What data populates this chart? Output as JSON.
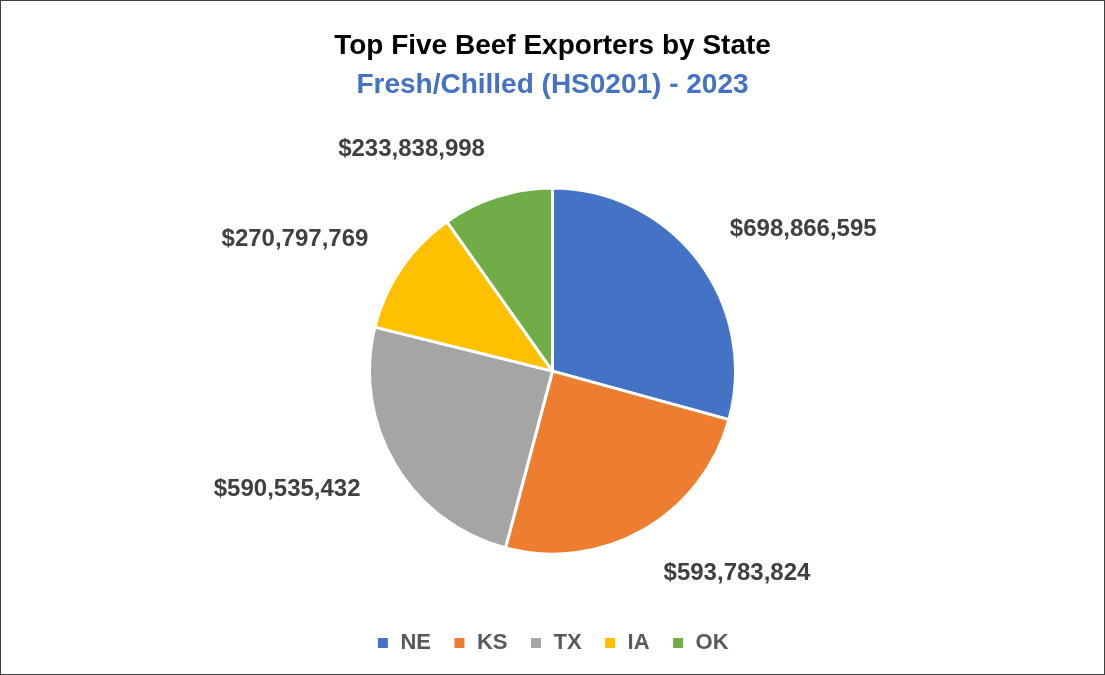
{
  "chart_data": {
    "type": "pie",
    "title": "Top Five Beef Exporters by State",
    "subtitle": "Fresh/Chilled (HS0201) - 2023",
    "categories": [
      "NE",
      "KS",
      "TX",
      "IA",
      "OK"
    ],
    "values": [
      698866595,
      593783824,
      590535432,
      270797769,
      233838998
    ],
    "value_labels": [
      "$698,866,595",
      "$593,783,824",
      "$590,535,432",
      "$270,797,769",
      "$233,838,998"
    ],
    "colors": [
      "#4472c4",
      "#ed7d31",
      "#a5a5a5",
      "#ffc000",
      "#70ad47"
    ],
    "legend": "bottom"
  }
}
